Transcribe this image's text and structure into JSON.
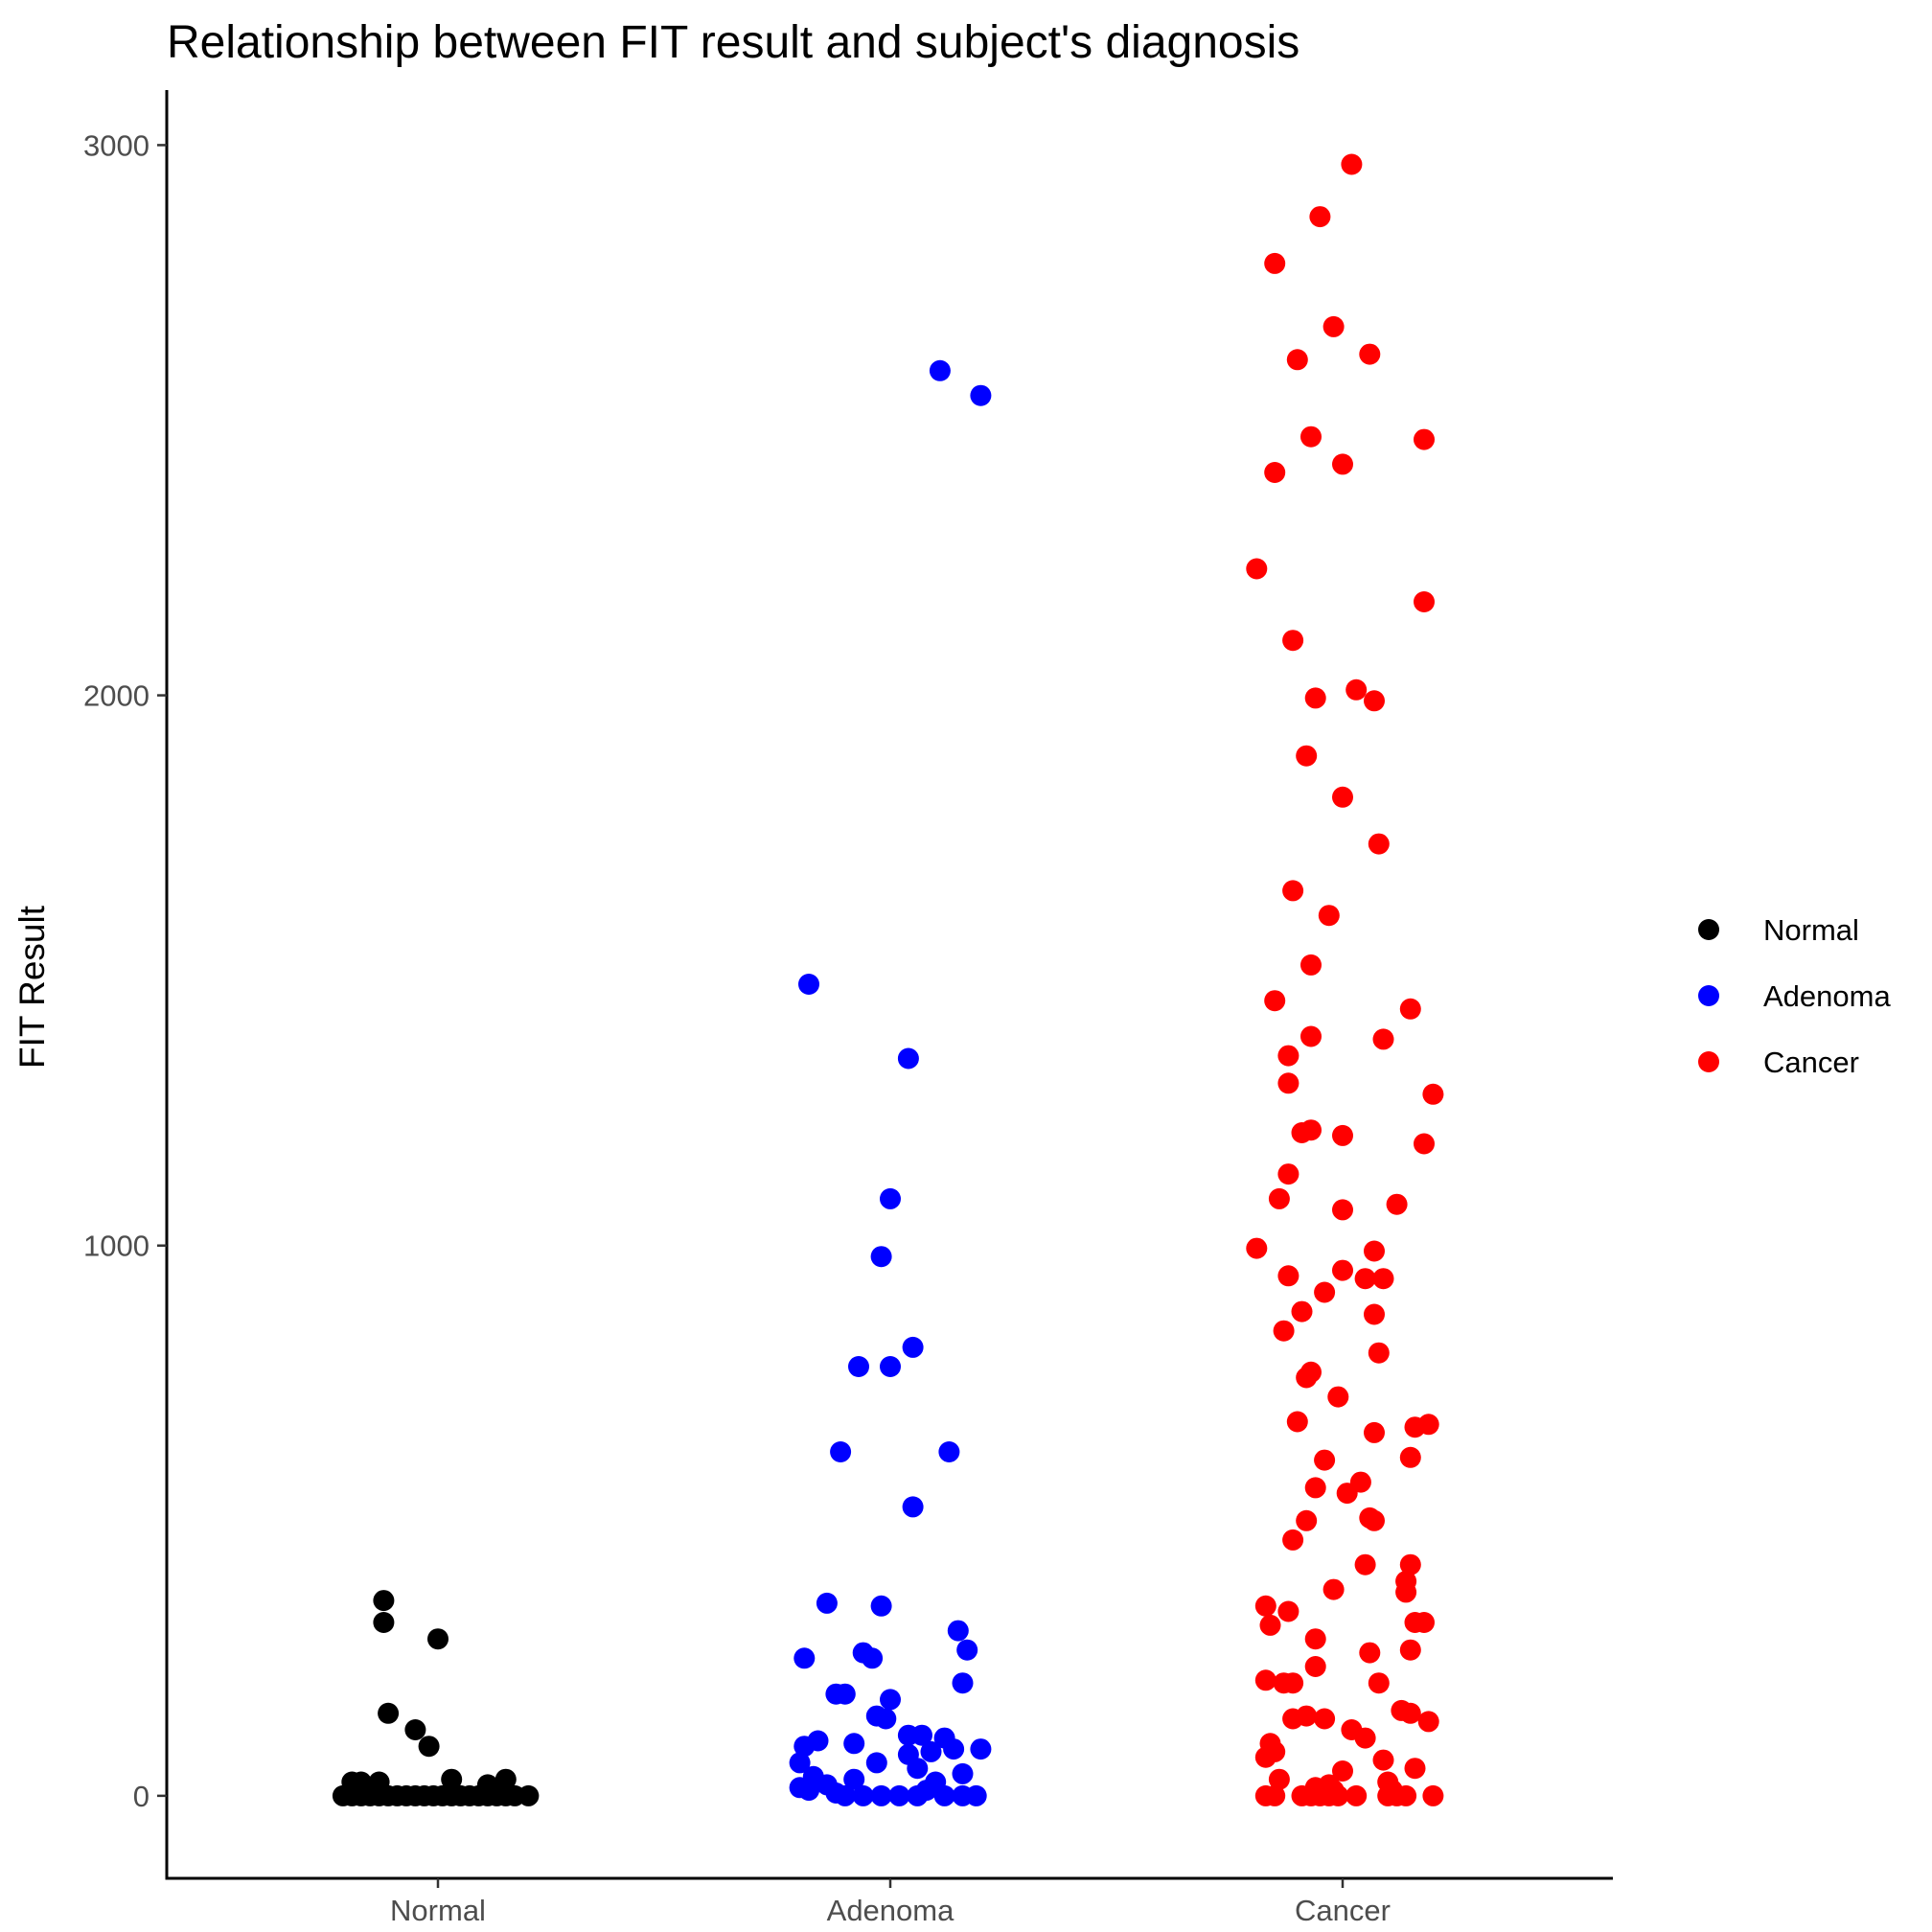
{
  "chart_data": {
    "type": "scatter",
    "title": "Relationship between FIT result and subject's diagnosis",
    "xlabel": "",
    "ylabel": "FIT Result",
    "ylim": [
      -150,
      3100
    ],
    "yticks": [
      0,
      1000,
      2000,
      3000
    ],
    "categories": [
      "Normal",
      "Adenoma",
      "Cancer"
    ],
    "legend": {
      "position": "right"
    },
    "series": [
      {
        "name": "Normal",
        "color": "#000000",
        "points": [
          [
            -0.12,
            355
          ],
          [
            -0.12,
            315
          ],
          [
            0.0,
            285
          ],
          [
            -0.11,
            150
          ],
          [
            -0.05,
            120
          ],
          [
            -0.02,
            90
          ],
          [
            -0.19,
            25
          ],
          [
            -0.17,
            25
          ],
          [
            -0.13,
            25
          ],
          [
            0.03,
            30
          ],
          [
            0.15,
            30
          ],
          [
            0.11,
            20
          ],
          [
            -0.21,
            0
          ],
          [
            -0.19,
            0
          ],
          [
            -0.17,
            0
          ],
          [
            -0.15,
            0
          ],
          [
            -0.13,
            0
          ],
          [
            -0.11,
            0
          ],
          [
            -0.09,
            0
          ],
          [
            -0.07,
            0
          ],
          [
            -0.05,
            0
          ],
          [
            -0.03,
            0
          ],
          [
            -0.01,
            0
          ],
          [
            0.01,
            0
          ],
          [
            0.03,
            0
          ],
          [
            0.05,
            0
          ],
          [
            0.07,
            0
          ],
          [
            0.09,
            0
          ],
          [
            0.11,
            0
          ],
          [
            0.13,
            0
          ],
          [
            0.15,
            0
          ],
          [
            0.17,
            0
          ],
          [
            0.2,
            0
          ]
        ]
      },
      {
        "name": "Adenoma",
        "color": "#0000ff",
        "points": [
          [
            0.11,
            2590
          ],
          [
            0.2,
            2545
          ],
          [
            -0.18,
            1475
          ],
          [
            0.04,
            1340
          ],
          [
            0.0,
            1085
          ],
          [
            -0.02,
            980
          ],
          [
            0.05,
            815
          ],
          [
            -0.07,
            780
          ],
          [
            0.0,
            780
          ],
          [
            -0.11,
            625
          ],
          [
            0.13,
            625
          ],
          [
            0.05,
            525
          ],
          [
            -0.14,
            350
          ],
          [
            -0.02,
            345
          ],
          [
            0.15,
            300
          ],
          [
            -0.19,
            250
          ],
          [
            -0.06,
            260
          ],
          [
            -0.04,
            250
          ],
          [
            0.17,
            265
          ],
          [
            -0.12,
            185
          ],
          [
            -0.1,
            185
          ],
          [
            0.0,
            175
          ],
          [
            0.16,
            205
          ],
          [
            -0.03,
            145
          ],
          [
            -0.01,
            140
          ],
          [
            0.04,
            110
          ],
          [
            0.07,
            110
          ],
          [
            0.12,
            105
          ],
          [
            -0.16,
            100
          ],
          [
            -0.19,
            90
          ],
          [
            -0.08,
            95
          ],
          [
            0.04,
            75
          ],
          [
            0.09,
            80
          ],
          [
            0.14,
            85
          ],
          [
            0.2,
            85
          ],
          [
            -0.2,
            60
          ],
          [
            -0.03,
            60
          ],
          [
            0.06,
            50
          ],
          [
            0.16,
            40
          ],
          [
            -0.17,
            35
          ],
          [
            -0.08,
            30
          ],
          [
            0.1,
            25
          ],
          [
            -0.2,
            15
          ],
          [
            -0.18,
            10
          ],
          [
            -0.12,
            5
          ],
          [
            -0.1,
            0
          ],
          [
            -0.06,
            0
          ],
          [
            -0.02,
            0
          ],
          [
            0.02,
            0
          ],
          [
            0.06,
            0
          ],
          [
            0.12,
            0
          ],
          [
            0.16,
            0
          ],
          [
            0.19,
            0
          ],
          [
            -0.14,
            20
          ],
          [
            0.08,
            10
          ]
        ]
      },
      {
        "name": "Cancer",
        "color": "#ff0000",
        "points": [
          [
            0.02,
            2965
          ],
          [
            -0.05,
            2870
          ],
          [
            -0.15,
            2785
          ],
          [
            -0.02,
            2670
          ],
          [
            -0.1,
            2610
          ],
          [
            0.06,
            2620
          ],
          [
            -0.07,
            2470
          ],
          [
            0.18,
            2465
          ],
          [
            -0.15,
            2405
          ],
          [
            0.0,
            2420
          ],
          [
            -0.19,
            2230
          ],
          [
            0.18,
            2170
          ],
          [
            -0.11,
            2100
          ],
          [
            0.03,
            2010
          ],
          [
            -0.06,
            1995
          ],
          [
            0.07,
            1990
          ],
          [
            -0.08,
            1890
          ],
          [
            0.0,
            1815
          ],
          [
            0.08,
            1730
          ],
          [
            -0.11,
            1645
          ],
          [
            -0.03,
            1600
          ],
          [
            -0.07,
            1510
          ],
          [
            -0.15,
            1445
          ],
          [
            0.15,
            1430
          ],
          [
            -0.07,
            1380
          ],
          [
            0.09,
            1375
          ],
          [
            -0.12,
            1345
          ],
          [
            -0.12,
            1295
          ],
          [
            0.2,
            1275
          ],
          [
            -0.09,
            1205
          ],
          [
            -0.07,
            1210
          ],
          [
            0.0,
            1200
          ],
          [
            0.18,
            1185
          ],
          [
            -0.12,
            1130
          ],
          [
            -0.14,
            1085
          ],
          [
            0.12,
            1075
          ],
          [
            0.0,
            1065
          ],
          [
            -0.19,
            995
          ],
          [
            0.07,
            990
          ],
          [
            -0.12,
            945
          ],
          [
            0.0,
            955
          ],
          [
            0.05,
            940
          ],
          [
            0.09,
            940
          ],
          [
            -0.04,
            915
          ],
          [
            -0.09,
            880
          ],
          [
            0.07,
            875
          ],
          [
            -0.13,
            845
          ],
          [
            0.08,
            805
          ],
          [
            -0.08,
            760
          ],
          [
            -0.07,
            770
          ],
          [
            -0.01,
            725
          ],
          [
            -0.1,
            680
          ],
          [
            0.07,
            660
          ],
          [
            0.16,
            670
          ],
          [
            0.19,
            675
          ],
          [
            0.15,
            615
          ],
          [
            -0.04,
            610
          ],
          [
            0.04,
            570
          ],
          [
            -0.06,
            560
          ],
          [
            0.01,
            550
          ],
          [
            -0.08,
            500
          ],
          [
            0.06,
            505
          ],
          [
            0.07,
            500
          ],
          [
            -0.11,
            465
          ],
          [
            0.05,
            420
          ],
          [
            0.15,
            420
          ],
          [
            0.14,
            390
          ],
          [
            0.14,
            370
          ],
          [
            -0.02,
            375
          ],
          [
            -0.17,
            345
          ],
          [
            -0.12,
            335
          ],
          [
            -0.16,
            310
          ],
          [
            0.16,
            315
          ],
          [
            0.18,
            315
          ],
          [
            -0.06,
            285
          ],
          [
            0.06,
            260
          ],
          [
            0.15,
            265
          ],
          [
            -0.06,
            235
          ],
          [
            -0.17,
            210
          ],
          [
            -0.13,
            205
          ],
          [
            -0.11,
            205
          ],
          [
            0.08,
            205
          ],
          [
            0.13,
            155
          ],
          [
            0.15,
            150
          ],
          [
            -0.11,
            140
          ],
          [
            -0.08,
            145
          ],
          [
            -0.04,
            140
          ],
          [
            0.19,
            135
          ],
          [
            0.02,
            120
          ],
          [
            0.05,
            105
          ],
          [
            -0.16,
            95
          ],
          [
            -0.15,
            80
          ],
          [
            -0.17,
            70
          ],
          [
            0.09,
            65
          ],
          [
            0.0,
            45
          ],
          [
            0.16,
            50
          ],
          [
            -0.14,
            30
          ],
          [
            -0.03,
            20
          ],
          [
            -0.06,
            15
          ],
          [
            0.1,
            25
          ],
          [
            -0.17,
            0
          ],
          [
            -0.15,
            0
          ],
          [
            -0.09,
            0
          ],
          [
            -0.07,
            0
          ],
          [
            -0.05,
            0
          ],
          [
            -0.03,
            0
          ],
          [
            -0.01,
            0
          ],
          [
            0.03,
            0
          ],
          [
            0.1,
            0
          ],
          [
            0.12,
            0
          ],
          [
            0.14,
            0
          ],
          [
            0.2,
            0
          ],
          [
            -0.04,
            5
          ],
          [
            -0.02,
            10
          ],
          [
            0.11,
            10
          ]
        ]
      }
    ]
  }
}
